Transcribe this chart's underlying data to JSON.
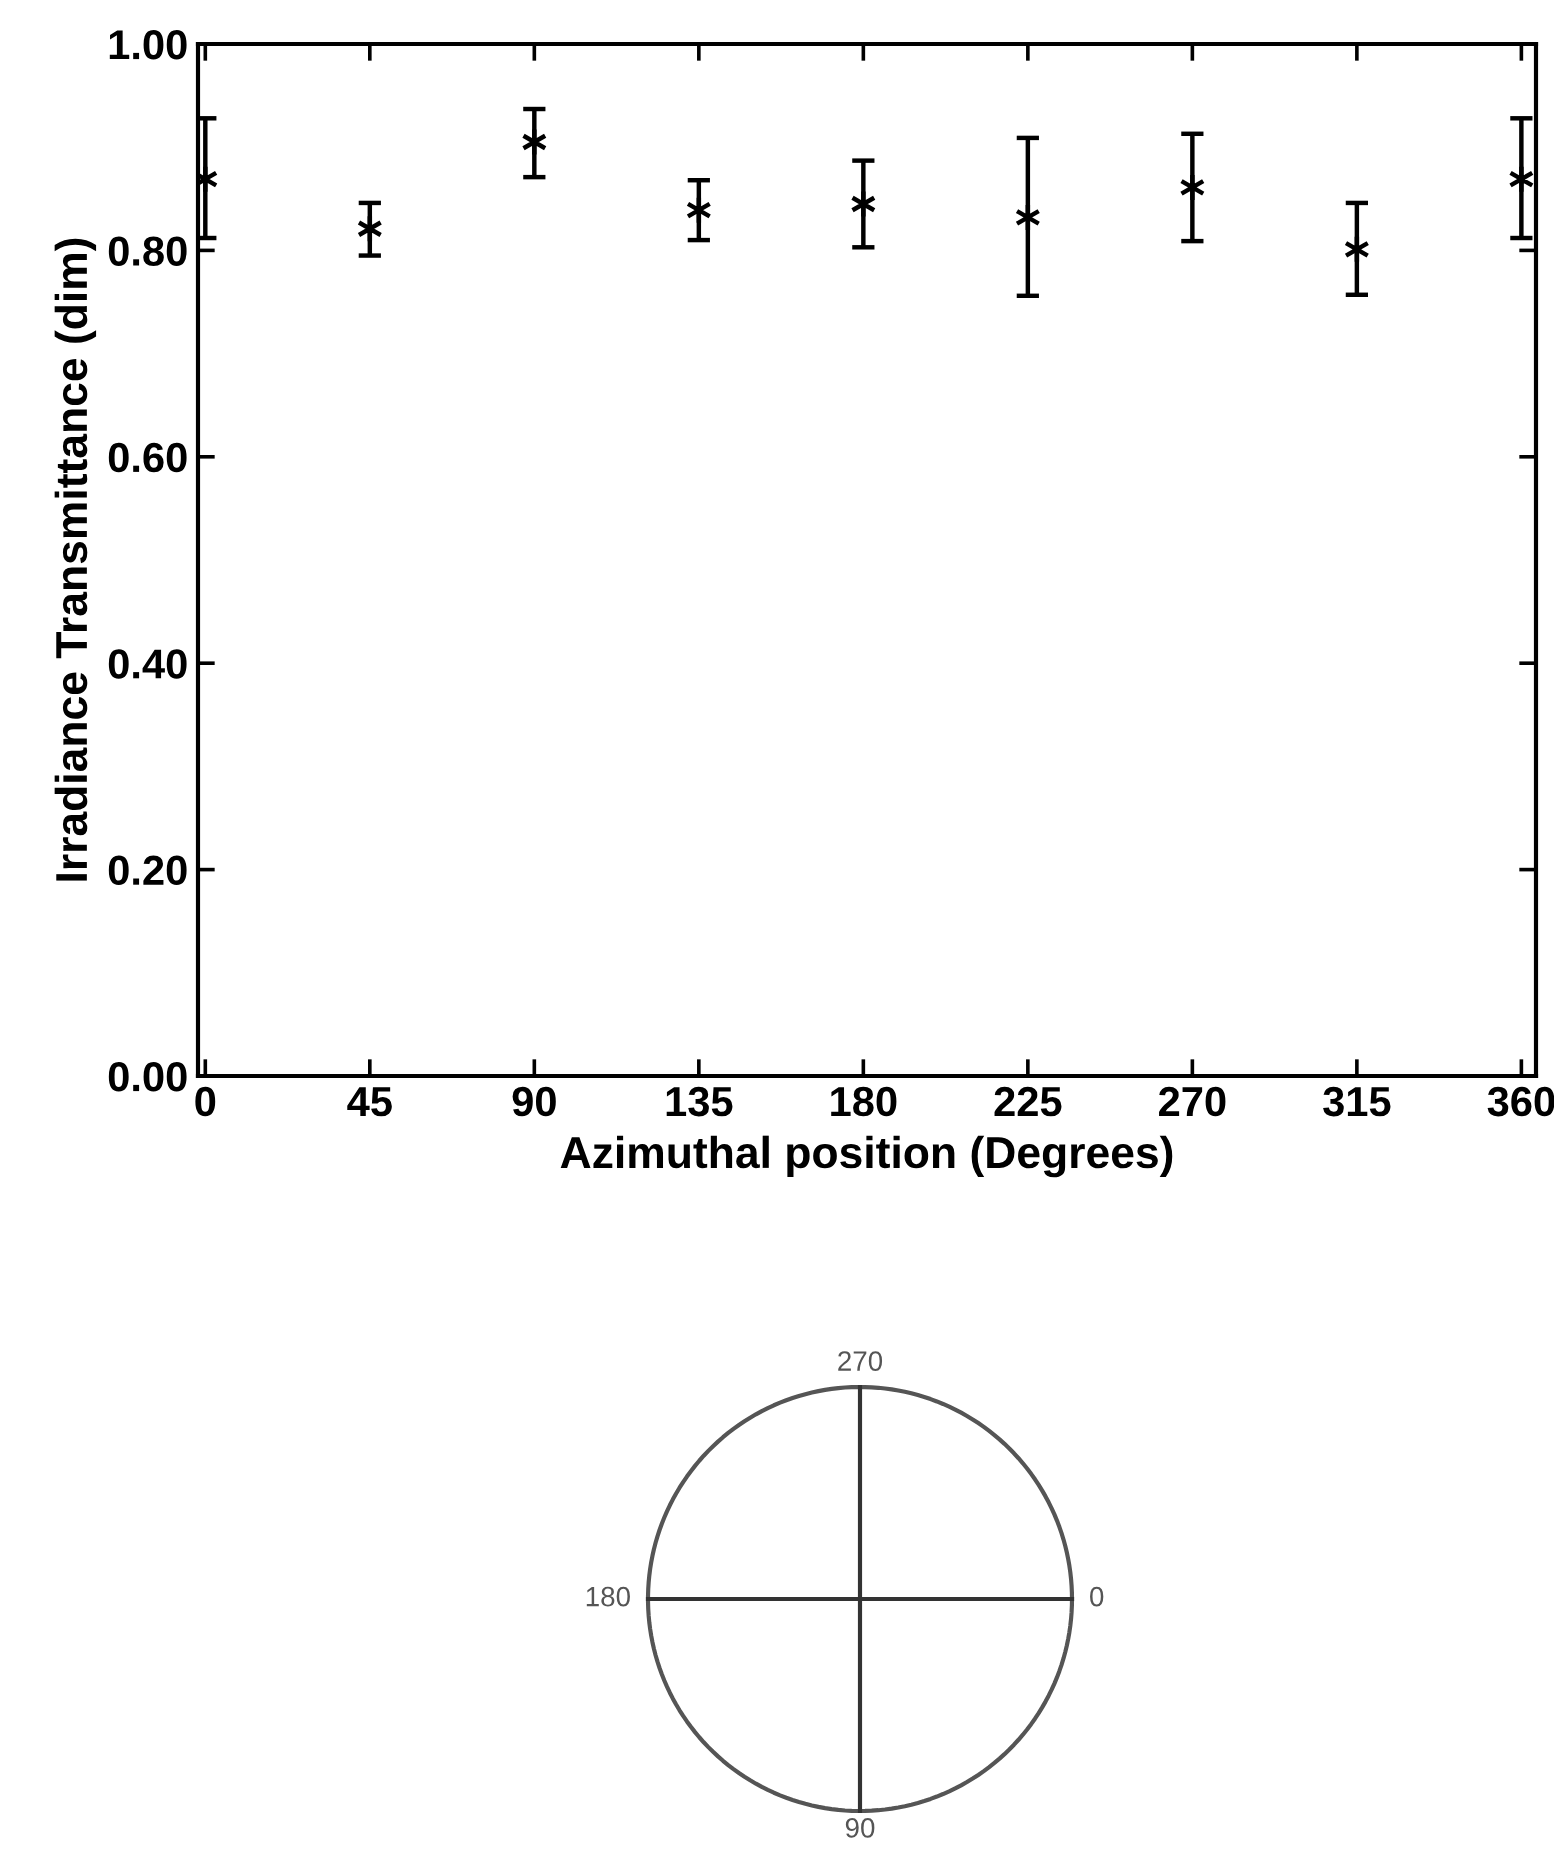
{
  "chart_data": {
    "type": "scatter",
    "xlabel": "Azimuthal position (Degrees)",
    "ylabel": "Irradiance Transmittance (dim)",
    "x": [
      0,
      45,
      90,
      135,
      180,
      225,
      270,
      315,
      360
    ],
    "values": [
      0.869,
      0.821,
      0.905,
      0.839,
      0.845,
      0.832,
      0.861,
      0.801,
      0.869
    ],
    "errors": [
      [
        0.812,
        0.928
      ],
      [
        0.795,
        0.846
      ],
      [
        0.871,
        0.937
      ],
      [
        0.81,
        0.868
      ],
      [
        0.803,
        0.887
      ],
      [
        0.756,
        0.909
      ],
      [
        0.809,
        0.913
      ],
      [
        0.757,
        0.846
      ],
      [
        0.812,
        0.928
      ]
    ],
    "color": "#000000",
    "marker": "cross",
    "grid": false,
    "xlim": [
      -2,
      364
    ],
    "xticks": [
      0,
      45,
      90,
      135,
      180,
      225,
      270,
      315,
      360
    ],
    "ylim": [
      0,
      1
    ],
    "yticks": [
      {
        "value": 0,
        "label": "0.00"
      },
      {
        "value": 0.2,
        "label": "0.20"
      },
      {
        "value": 0.4,
        "label": "0.40"
      },
      {
        "value": 0.6,
        "label": "0.60"
      },
      {
        "value": 0.8,
        "label": "0.80"
      },
      {
        "value": 1,
        "label": "1.00"
      }
    ],
    "annotations": [
      "270",
      "180",
      "0",
      "90"
    ]
  }
}
